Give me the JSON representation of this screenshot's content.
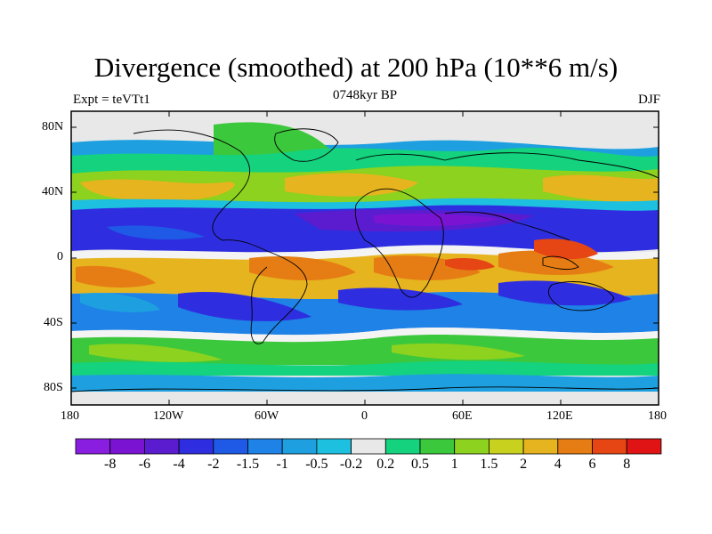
{
  "title": "Divergence (smoothed) at 200 hPa (10**6 m/s)",
  "subtitle_left": "Expt = teVTt1",
  "subtitle_center": "0748kyr BP",
  "subtitle_right": "DJF",
  "lat_labels": [
    "80N",
    "40N",
    "0",
    "40S",
    "80S"
  ],
  "lon_labels": [
    "180",
    "120W",
    "60W",
    "0",
    "60E",
    "120E",
    "180"
  ],
  "colorbar": {
    "labels": [
      "-8",
      "-6",
      "-4",
      "-2",
      "-1.5",
      "-1",
      "-0.5",
      "-0.2",
      "0.2",
      "0.5",
      "1",
      "1.5",
      "2",
      "4",
      "6",
      "8"
    ],
    "colors": [
      "#8a1ee0",
      "#7a14d2",
      "#5b1ccf",
      "#2e2ee0",
      "#1e5ae6",
      "#1e82e6",
      "#1ea0e0",
      "#1ec0e0",
      "#e8e8e8",
      "#14d27d",
      "#3cc83c",
      "#8cd21e",
      "#c8d21e",
      "#e6b41e",
      "#e67d14",
      "#e64614",
      "#e01414"
    ]
  },
  "chart_data": {
    "type": "heatmap",
    "title": "Divergence (smoothed) at 200 hPa (10**6 m/s)",
    "x": [
      -180,
      -120,
      -60,
      0,
      60,
      120,
      180
    ],
    "y": [
      80,
      40,
      0,
      -40,
      -80
    ],
    "xlim": [
      -180,
      180
    ],
    "ylim": [
      -90,
      90
    ],
    "note": "Filled contours of 200 hPa divergence; convergence (blue/purple) in subtropics, divergence (orange/red) in tropical band."
  },
  "colors": {
    "frame": "#000000",
    "neutral": "#e8e8e8"
  }
}
